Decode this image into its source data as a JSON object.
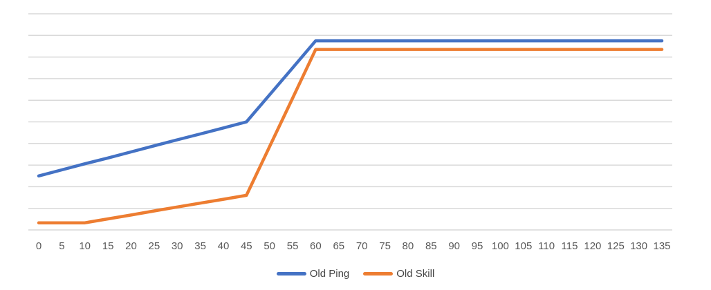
{
  "chart_data": {
    "type": "line",
    "title": "",
    "xlabel": "",
    "ylabel": "",
    "categories": [
      "0",
      "5",
      "10",
      "15",
      "20",
      "25",
      "30",
      "35",
      "40",
      "45",
      "50",
      "55",
      "60",
      "65",
      "70",
      "75",
      "80",
      "85",
      "90",
      "95",
      "100",
      "105",
      "110",
      "115",
      "120",
      "125",
      "130",
      "135"
    ],
    "series": [
      {
        "name": "Old Ping",
        "color": "#4472C4",
        "values": [
          25,
          27.8,
          30.6,
          33.3,
          36.1,
          38.9,
          41.7,
          44.4,
          47.2,
          50,
          62.5,
          75,
          87.5,
          87.5,
          87.5,
          87.5,
          87.5,
          87.5,
          87.5,
          87.5,
          87.5,
          87.5,
          87.5,
          87.5,
          87.5,
          87.5,
          87.5,
          87.5
        ]
      },
      {
        "name": "Old Skill",
        "color": "#ED7D31",
        "values": [
          3.3,
          3.3,
          3.3,
          5.1,
          6.9,
          8.8,
          10.6,
          12.4,
          14.2,
          16,
          38.5,
          61,
          83.5,
          83.5,
          83.5,
          83.5,
          83.5,
          83.5,
          83.5,
          83.5,
          83.5,
          83.5,
          83.5,
          83.5,
          83.5,
          83.5,
          83.5,
          83.5
        ]
      }
    ],
    "ylim": [
      0,
      100
    ],
    "y_gridline_step": 10,
    "y_axis_labels_visible": false,
    "grid": "horizontal-only",
    "gridline_color": "#D9D9D9",
    "tick_label_color": "#595959",
    "legend": {
      "position": "bottom-center",
      "entries": [
        "Old Ping",
        "Old Skill"
      ]
    }
  }
}
